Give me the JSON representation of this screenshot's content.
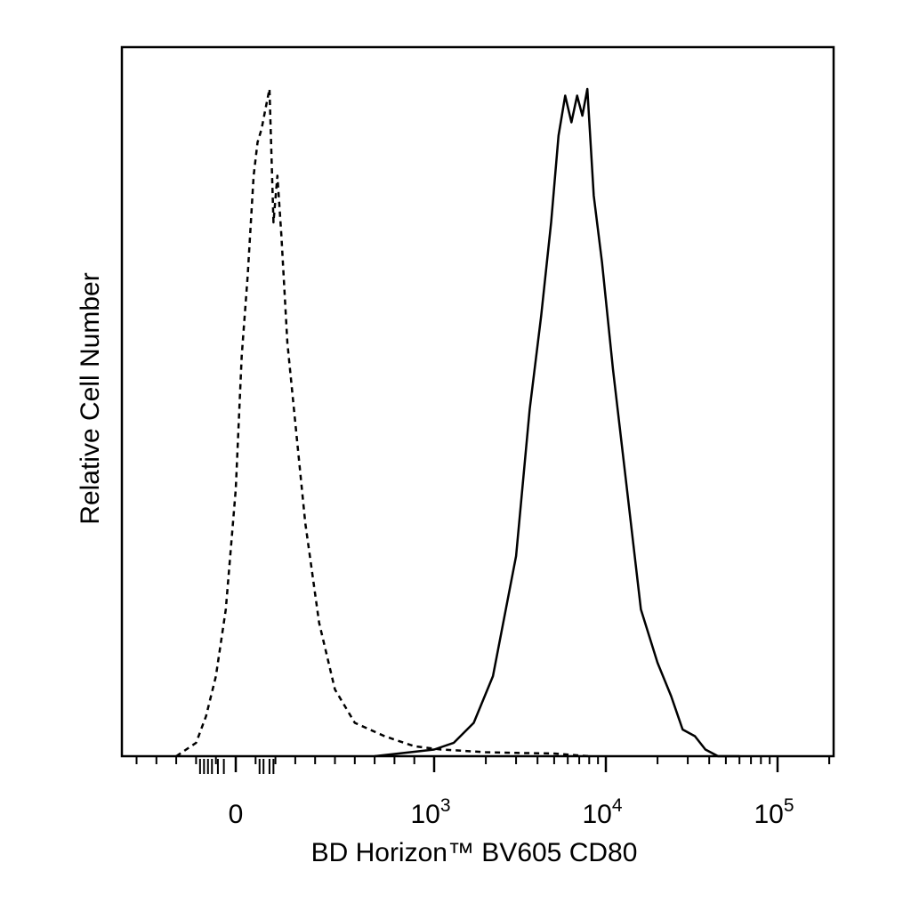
{
  "chart_data": {
    "type": "line",
    "title": "",
    "xlabel": "BD Horizon™ BV605 CD80",
    "ylabel": "Relative Cell Number",
    "x_scale": "biexponential",
    "xlim": [
      -500,
      250000
    ],
    "ylim": [
      0,
      1
    ],
    "grid": false,
    "legend": "none",
    "x_ticks": [
      {
        "value": 0,
        "base": "0",
        "exp": ""
      },
      {
        "value": 1000,
        "base": "10",
        "exp": "3"
      },
      {
        "value": 10000,
        "base": "10",
        "exp": "4"
      },
      {
        "value": 100000,
        "base": "10",
        "exp": "5"
      }
    ],
    "series": [
      {
        "style": "dashed",
        "x": [
          -300,
          -200,
          -150,
          -100,
          -50,
          0,
          30,
          60,
          90,
          110,
          130,
          150,
          170,
          190,
          210,
          230,
          260,
          300,
          350,
          420,
          500,
          600,
          750,
          900,
          1100,
          1500,
          2000,
          3000,
          5000,
          8000
        ],
        "y": [
          0.0,
          0.02,
          0.06,
          0.12,
          0.22,
          0.4,
          0.6,
          0.72,
          0.87,
          0.92,
          0.94,
          0.97,
          1.0,
          0.8,
          0.87,
          0.78,
          0.62,
          0.5,
          0.35,
          0.2,
          0.1,
          0.05,
          0.03,
          0.015,
          0.01,
          0.008,
          0.006,
          0.005,
          0.004,
          0.0
        ]
      },
      {
        "style": "solid",
        "x": [
          700,
          1000,
          1300,
          1700,
          2200,
          3000,
          3600,
          4200,
          4800,
          5300,
          5800,
          6300,
          6800,
          7300,
          7800,
          8500,
          9500,
          11000,
          13000,
          16000,
          20000,
          24000,
          28000,
          33000,
          38000,
          45000,
          60000
        ],
        "y": [
          0.0,
          0.01,
          0.02,
          0.05,
          0.12,
          0.3,
          0.52,
          0.66,
          0.8,
          0.93,
          0.99,
          0.95,
          0.99,
          0.96,
          1.0,
          0.84,
          0.74,
          0.58,
          0.42,
          0.22,
          0.14,
          0.09,
          0.04,
          0.03,
          0.01,
          0.0,
          0.0
        ]
      }
    ]
  }
}
